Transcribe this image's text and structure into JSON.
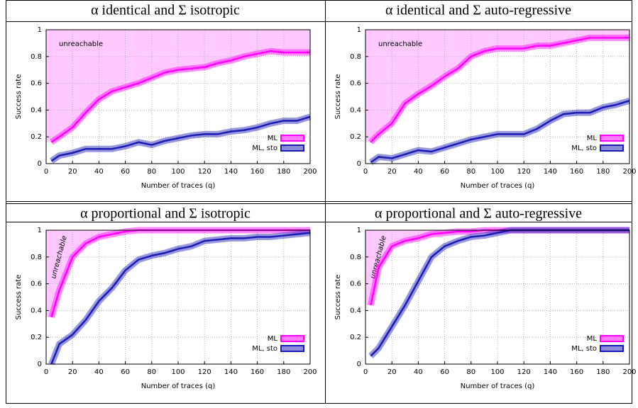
{
  "chart_data": [
    {
      "type": "line",
      "title": "α identical and Σ isotropic",
      "x_label": "Number of traces (q)",
      "y_label": "Success rate",
      "annotation": "unreachable",
      "x": [
        4,
        10,
        20,
        30,
        40,
        50,
        60,
        70,
        80,
        90,
        100,
        110,
        120,
        130,
        140,
        150,
        160,
        170,
        180,
        190,
        200
      ],
      "series": [
        {
          "name": "ML",
          "color": "#ff00ff",
          "values": [
            0.16,
            0.2,
            0.27,
            0.38,
            0.48,
            0.54,
            0.57,
            0.6,
            0.64,
            0.68,
            0.7,
            0.71,
            0.72,
            0.75,
            0.77,
            0.8,
            0.82,
            0.84,
            0.83,
            0.83,
            0.83
          ]
        },
        {
          "name": "ML, sto",
          "color": "#1a1ab4",
          "values": [
            0.02,
            0.06,
            0.08,
            0.11,
            0.11,
            0.11,
            0.13,
            0.16,
            0.14,
            0.17,
            0.19,
            0.21,
            0.22,
            0.22,
            0.24,
            0.25,
            0.27,
            0.3,
            0.32,
            0.32,
            0.35
          ]
        }
      ],
      "xlim": [
        0,
        200
      ],
      "xticks": [
        0,
        20,
        40,
        60,
        80,
        100,
        120,
        140,
        160,
        180,
        200
      ],
      "ylim": [
        0,
        1
      ],
      "yticks": [
        0,
        0.2,
        0.4,
        0.6,
        0.8,
        1
      ],
      "grid": true,
      "legend": "lower right"
    },
    {
      "type": "line",
      "title": "α identical and Σ auto-regressive",
      "x_label": "Number of traces (q)",
      "y_label": "Success rate",
      "annotation": "unreachable",
      "x": [
        4,
        10,
        20,
        30,
        40,
        50,
        60,
        70,
        80,
        90,
        100,
        110,
        120,
        130,
        140,
        150,
        160,
        170,
        180,
        190,
        200
      ],
      "series": [
        {
          "name": "ML",
          "color": "#ff00ff",
          "values": [
            0.16,
            0.22,
            0.3,
            0.45,
            0.52,
            0.58,
            0.65,
            0.71,
            0.8,
            0.84,
            0.86,
            0.86,
            0.86,
            0.88,
            0.88,
            0.9,
            0.92,
            0.94,
            0.94,
            0.94,
            0.94
          ]
        },
        {
          "name": "ML, sto",
          "color": "#1a1ab4",
          "values": [
            0.01,
            0.05,
            0.04,
            0.07,
            0.1,
            0.09,
            0.12,
            0.15,
            0.18,
            0.2,
            0.22,
            0.22,
            0.22,
            0.26,
            0.32,
            0.37,
            0.38,
            0.38,
            0.42,
            0.44,
            0.47
          ]
        }
      ],
      "xlim": [
        0,
        200
      ],
      "xticks": [
        0,
        20,
        40,
        60,
        80,
        100,
        120,
        140,
        160,
        180,
        200
      ],
      "ylim": [
        0,
        1
      ],
      "yticks": [
        0,
        0.2,
        0.4,
        0.6,
        0.8,
        1
      ],
      "grid": true,
      "legend": "lower right"
    },
    {
      "type": "line",
      "title": "α proportional and Σ isotropic",
      "x_label": "Number of traces (q)",
      "y_label": "Success rate",
      "annotation": "unreachable",
      "x": [
        4,
        10,
        20,
        30,
        40,
        50,
        60,
        70,
        80,
        90,
        100,
        110,
        120,
        130,
        140,
        150,
        160,
        170,
        180,
        190,
        200
      ],
      "series": [
        {
          "name": "ML",
          "color": "#ff00ff",
          "values": [
            0.35,
            0.55,
            0.8,
            0.9,
            0.95,
            0.97,
            0.99,
            1,
            1,
            1,
            1,
            1,
            1,
            1,
            1,
            1,
            1,
            1,
            1,
            1,
            1
          ]
        },
        {
          "name": "ML, sto",
          "color": "#1a1ab4",
          "values": [
            0,
            0.15,
            0.22,
            0.33,
            0.47,
            0.57,
            0.7,
            0.78,
            0.81,
            0.83,
            0.86,
            0.88,
            0.92,
            0.93,
            0.94,
            0.94,
            0.95,
            0.95,
            0.96,
            0.97,
            0.98
          ]
        }
      ],
      "xlim": [
        0,
        200
      ],
      "xticks": [
        0,
        20,
        40,
        60,
        80,
        100,
        120,
        140,
        160,
        180,
        200
      ],
      "ylim": [
        0,
        1
      ],
      "yticks": [
        0,
        0.2,
        0.4,
        0.6,
        0.8,
        1
      ],
      "grid": true,
      "legend": "lower right"
    },
    {
      "type": "line",
      "title": "α proportional and Σ auto-regressive",
      "x_label": "Number of traces (q)",
      "y_label": "Success rate",
      "annotation": "unreachable",
      "x": [
        4,
        10,
        20,
        30,
        40,
        50,
        60,
        70,
        80,
        90,
        100,
        110,
        120,
        130,
        140,
        150,
        160,
        170,
        180,
        190,
        200
      ],
      "series": [
        {
          "name": "ML",
          "color": "#ff00ff",
          "values": [
            0.44,
            0.72,
            0.88,
            0.92,
            0.94,
            0.97,
            0.98,
            0.99,
            0.99,
            1,
            1,
            1,
            1,
            1,
            1,
            1,
            1,
            1,
            1,
            1,
            1
          ]
        },
        {
          "name": "ML, sto",
          "color": "#1a1ab4",
          "values": [
            0.06,
            0.12,
            0.28,
            0.44,
            0.62,
            0.8,
            0.88,
            0.92,
            0.95,
            0.96,
            0.98,
            1,
            1,
            1,
            1,
            1,
            1,
            1,
            1,
            1,
            1
          ]
        }
      ],
      "xlim": [
        0,
        200
      ],
      "xticks": [
        0,
        20,
        40,
        60,
        80,
        100,
        120,
        140,
        160,
        180,
        200
      ],
      "ylim": [
        0,
        1
      ],
      "yticks": [
        0,
        0.2,
        0.4,
        0.6,
        0.8,
        1
      ],
      "grid": true,
      "legend": "lower right"
    }
  ]
}
